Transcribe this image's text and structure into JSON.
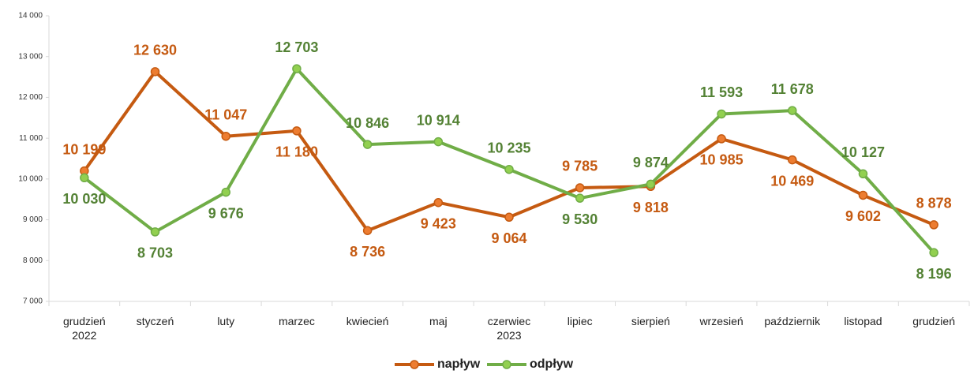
{
  "chart_data": {
    "type": "line",
    "categories": [
      "grudzień 2022",
      "styczeń",
      "luty",
      "marzec",
      "kwiecień",
      "maj",
      "czerwiec 2023",
      "lipiec",
      "sierpień",
      "wrzesień",
      "październik",
      "listopad",
      "grudzień"
    ],
    "series": [
      {
        "name": "napływ",
        "color": "#c55a11",
        "marker_color": "#ed7d31",
        "label_color": "#c55a11",
        "values": [
          10199,
          12630,
          11047,
          11180,
          8736,
          9423,
          9064,
          9785,
          9818,
          10985,
          10469,
          9602,
          8878
        ],
        "value_labels": [
          "10 199",
          "12 630",
          "11 047",
          "11 180",
          "8 736",
          "9 423",
          "9 064",
          "9 785",
          "9 818",
          "10 985",
          "10 469",
          "9 602",
          "8 878"
        ]
      },
      {
        "name": "odpływ",
        "color": "#70ad47",
        "marker_color": "#92d050",
        "label_color": "#548235",
        "values": [
          10030,
          8703,
          9676,
          12703,
          10846,
          10914,
          10235,
          9530,
          9874,
          11593,
          11678,
          10127,
          8196
        ],
        "value_labels": [
          "10 030",
          "8 703",
          "9 676",
          "12 703",
          "10 846",
          "10 914",
          "10 235",
          "9 530",
          "9 874",
          "11 593",
          "11 678",
          "10 127",
          "8 196"
        ]
      }
    ],
    "ylim": [
      7000,
      14000
    ],
    "yticks": [
      {
        "value": 7000,
        "label": "7 000"
      },
      {
        "value": 8000,
        "label": "8 000"
      },
      {
        "value": 9000,
        "label": "9 000"
      },
      {
        "value": 10000,
        "label": "10 000"
      },
      {
        "value": 11000,
        "label": "11 000"
      },
      {
        "value": 12000,
        "label": "12 000"
      },
      {
        "value": 13000,
        "label": "13 000"
      },
      {
        "value": 14000,
        "label": "14 000"
      }
    ],
    "grid": false,
    "legend": "bottom"
  }
}
